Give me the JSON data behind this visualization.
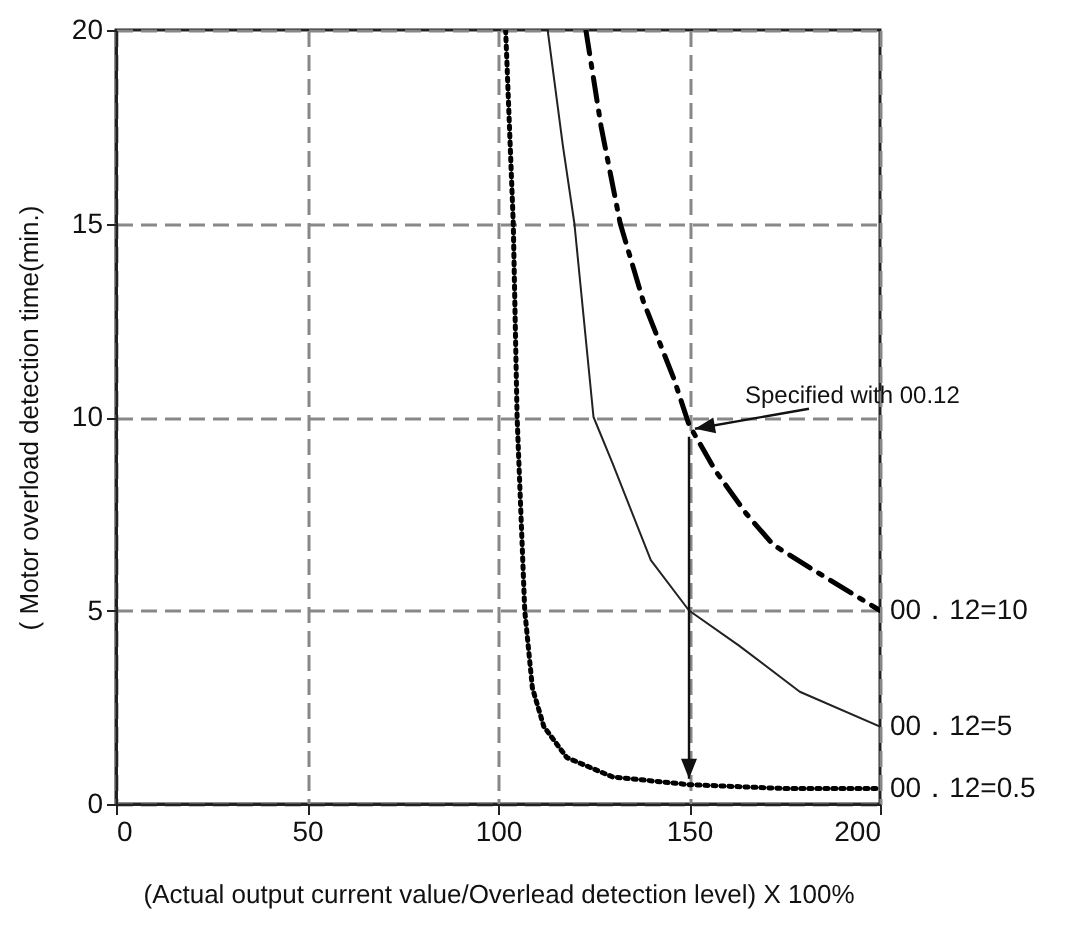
{
  "chart_data": {
    "type": "line",
    "xlabel": "(Actual output current value/Overlead detection level) X 100%",
    "ylabel": "( Motor overload detection time(min.)",
    "xlim": [
      0,
      200
    ],
    "xticks": [
      0,
      50,
      100,
      150,
      200
    ],
    "ylim": [
      0,
      20
    ],
    "yticks": [
      0,
      5,
      10,
      15,
      20
    ],
    "grid": true,
    "legend": false,
    "marker": "none",
    "annotations": [
      {
        "text": "Specified with 00.12",
        "x": 150,
        "y": 9.8
      }
    ],
    "series": [
      {
        "name": "00．12=0.5",
        "color": "#000000",
        "line_style": "dotted",
        "x": [
          102,
          104,
          105,
          107,
          109,
          112,
          118,
          130,
          150,
          175,
          200
        ],
        "values": [
          20,
          15,
          10,
          5,
          3,
          2,
          1.2,
          0.7,
          0.5,
          0.4,
          0.4
        ]
      },
      {
        "name": "00．12=5",
        "color": "#222222",
        "line_style": "solid",
        "x": [
          113,
          117,
          120,
          125,
          130,
          140,
          150,
          163,
          179,
          200
        ],
        "values": [
          20,
          17,
          15,
          10,
          8.8,
          6.3,
          5,
          4.1,
          2.9,
          2
        ]
      },
      {
        "name": "00．12=10",
        "color": "#000000",
        "line_style": "dashed",
        "x": [
          123,
          127,
          132,
          138,
          146,
          150,
          157,
          165,
          172,
          185,
          200
        ],
        "values": [
          20,
          17.5,
          15,
          13,
          11,
          9.8,
          8.6,
          7.5,
          6.7,
          5.9,
          5
        ]
      }
    ]
  }
}
